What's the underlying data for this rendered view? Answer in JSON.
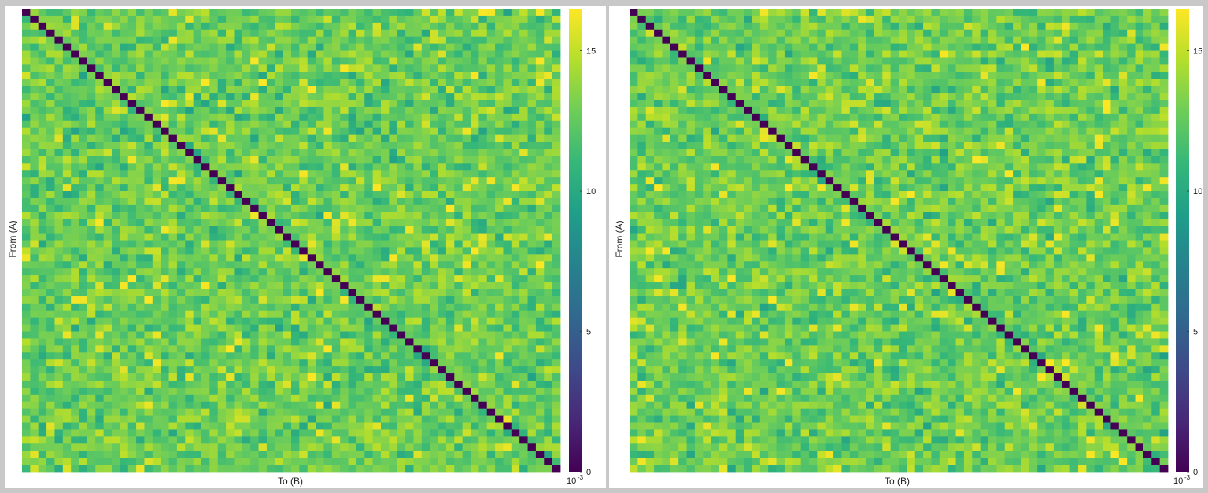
{
  "chart_data": [
    {
      "type": "heatmap",
      "xlabel": "To (B)",
      "ylabel": "From (A)",
      "n": 66,
      "colorbar": {
        "ticks": [
          "0",
          "5",
          "10",
          "15"
        ],
        "tick_values": [
          0,
          5,
          10,
          15
        ],
        "range": [
          0,
          16.5
        ],
        "scale_label": "10",
        "scale_exponent": "-3",
        "colormap": "viridis"
      },
      "diagonal_value": 0,
      "off_diagonal_range": [
        9,
        16.5
      ],
      "seed": 20231
    },
    {
      "type": "heatmap",
      "xlabel": "To (B)",
      "ylabel": "From (A)",
      "n": 66,
      "colorbar": {
        "ticks": [
          "0",
          "5",
          "10",
          "15"
        ],
        "tick_values": [
          0,
          5,
          10,
          15
        ],
        "range": [
          0,
          16.5
        ],
        "scale_label": "10",
        "scale_exponent": "-3",
        "colormap": "viridis"
      },
      "diagonal_value": 0,
      "off_diagonal_range": [
        9,
        16.5
      ],
      "seed": 7741
    }
  ]
}
